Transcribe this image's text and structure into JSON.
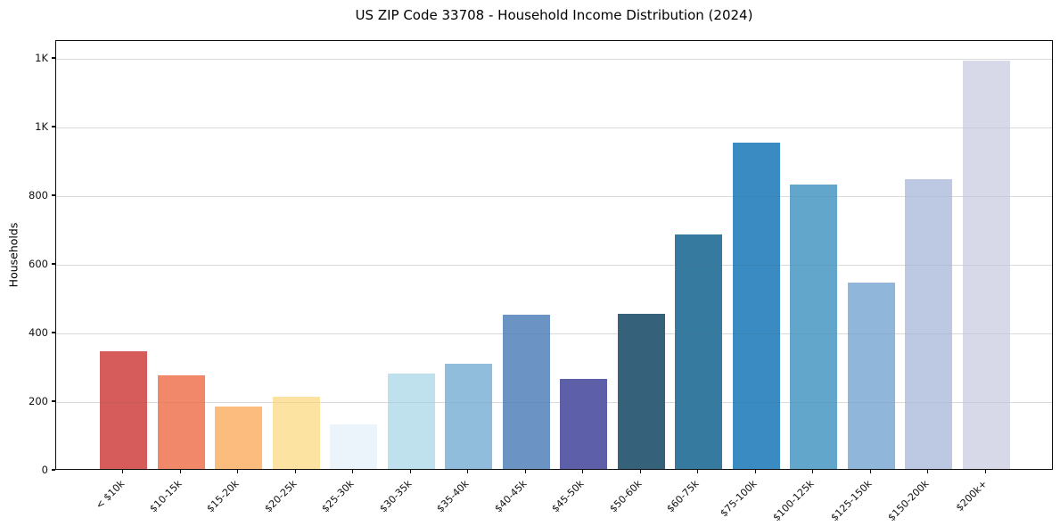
{
  "chart_data": {
    "type": "bar",
    "title": "US ZIP Code 33708 - Household Income Distribution (2024)",
    "xlabel": "",
    "ylabel": "Households",
    "categories": [
      "< $10k",
      "$10-15k",
      "$15-20k",
      "$20-25k",
      "$25-30k",
      "$30-35k",
      "$35-40k",
      "$40-45k",
      "$45-50k",
      "$50-60k",
      "$60-75k",
      "$75-100k",
      "$100-125k",
      "$125-150k",
      "$150-200k",
      "$200k+"
    ],
    "values": [
      343,
      273,
      182,
      210,
      130,
      279,
      307,
      449,
      262,
      452,
      683,
      950,
      828,
      543,
      845,
      1190
    ],
    "bar_colors": [
      "#d65c5c",
      "#f2886a",
      "#fcbc7e",
      "#fde3a1",
      "#eaf4fa",
      "#bfe0ed",
      "#90bddc",
      "#6b93c4",
      "#5d5fa8",
      "#36617b",
      "#377aa0",
      "#398bc1",
      "#62a7cb",
      "#90b6da",
      "#bdc9e2",
      "#d7d9e8"
    ],
    "y_ticks": [
      {
        "value": 0,
        "label": "0"
      },
      {
        "value": 200,
        "label": "200"
      },
      {
        "value": 400,
        "label": "400"
      },
      {
        "value": 600,
        "label": "600"
      },
      {
        "value": 800,
        "label": "800"
      },
      {
        "value": 1000,
        "label": "1K"
      },
      {
        "value": 1200,
        "label": "1K"
      }
    ],
    "ylim": [
      0,
      1252
    ],
    "grid": "horizontal",
    "legend": "none",
    "grid_color": "#e7e7e7",
    "axis_color": "#0d0d0d",
    "background": "#ffffff"
  }
}
